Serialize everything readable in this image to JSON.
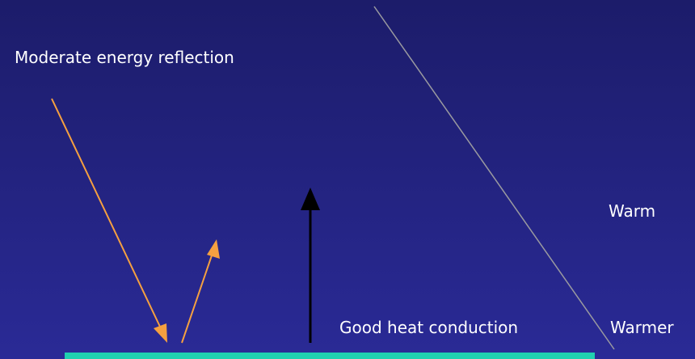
{
  "labels": {
    "reflection": "Moderate energy reflection",
    "conduction": "Good heat conduction",
    "warm": "Warm",
    "warmer": "Warmer"
  }
}
